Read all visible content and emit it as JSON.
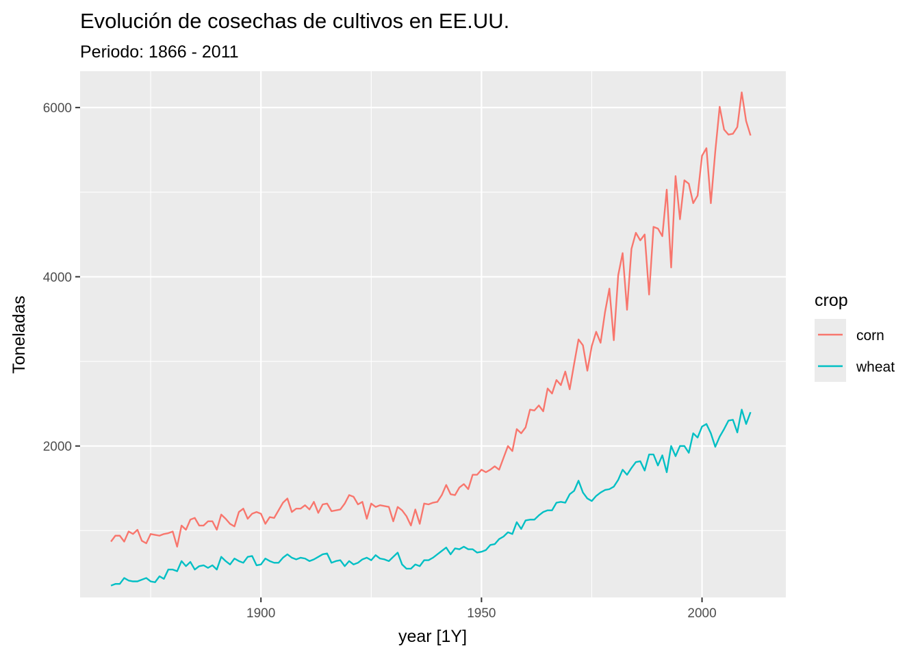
{
  "chart_data": {
    "type": "line",
    "title": "Evolución de cosechas de cultivos en EE.UU.",
    "subtitle": "Periodo: 1866 - 2011",
    "xlabel": "year [1Y]",
    "ylabel": "Toneladas",
    "xlim": [
      1859,
      2019
    ],
    "ylim": [
      210,
      6430
    ],
    "x_ticks": [
      1900,
      1950,
      2000
    ],
    "x_tick_labels": [
      "1900",
      "1950",
      "2000"
    ],
    "x_minor_ticks": [
      1875,
      1925,
      1975
    ],
    "y_ticks": [
      2000,
      4000,
      6000
    ],
    "y_tick_labels": [
      "2000",
      "4000",
      "6000"
    ],
    "y_minor_ticks": [
      1000,
      3000,
      5000
    ],
    "grid": true,
    "panel_background": "#EBEBEB",
    "legend": {
      "title": "crop",
      "position": "right"
    },
    "series": [
      {
        "name": "corn",
        "color": "#F8766D",
        "points": [
          [
            1866,
            870
          ],
          [
            1867,
            940
          ],
          [
            1868,
            940
          ],
          [
            1869,
            870
          ],
          [
            1870,
            990
          ],
          [
            1871,
            960
          ],
          [
            1872,
            1010
          ],
          [
            1873,
            880
          ],
          [
            1874,
            850
          ],
          [
            1875,
            960
          ],
          [
            1876,
            950
          ],
          [
            1877,
            940
          ],
          [
            1878,
            960
          ],
          [
            1879,
            970
          ],
          [
            1880,
            990
          ],
          [
            1881,
            810
          ],
          [
            1882,
            1060
          ],
          [
            1883,
            1010
          ],
          [
            1884,
            1130
          ],
          [
            1885,
            1150
          ],
          [
            1886,
            1060
          ],
          [
            1887,
            1060
          ],
          [
            1888,
            1110
          ],
          [
            1889,
            1110
          ],
          [
            1890,
            1010
          ],
          [
            1891,
            1190
          ],
          [
            1892,
            1140
          ],
          [
            1893,
            1080
          ],
          [
            1894,
            1050
          ],
          [
            1895,
            1220
          ],
          [
            1896,
            1260
          ],
          [
            1897,
            1140
          ],
          [
            1898,
            1200
          ],
          [
            1899,
            1220
          ],
          [
            1900,
            1200
          ],
          [
            1901,
            1080
          ],
          [
            1902,
            1160
          ],
          [
            1903,
            1150
          ],
          [
            1904,
            1240
          ],
          [
            1905,
            1330
          ],
          [
            1906,
            1380
          ],
          [
            1907,
            1220
          ],
          [
            1908,
            1260
          ],
          [
            1909,
            1260
          ],
          [
            1910,
            1300
          ],
          [
            1911,
            1250
          ],
          [
            1912,
            1340
          ],
          [
            1913,
            1210
          ],
          [
            1914,
            1310
          ],
          [
            1915,
            1320
          ],
          [
            1916,
            1230
          ],
          [
            1917,
            1240
          ],
          [
            1918,
            1250
          ],
          [
            1919,
            1320
          ],
          [
            1920,
            1420
          ],
          [
            1921,
            1400
          ],
          [
            1922,
            1310
          ],
          [
            1923,
            1340
          ],
          [
            1924,
            1140
          ],
          [
            1925,
            1320
          ],
          [
            1926,
            1280
          ],
          [
            1927,
            1300
          ],
          [
            1928,
            1290
          ],
          [
            1929,
            1280
          ],
          [
            1930,
            1110
          ],
          [
            1931,
            1280
          ],
          [
            1932,
            1240
          ],
          [
            1933,
            1170
          ],
          [
            1934,
            1060
          ],
          [
            1935,
            1250
          ],
          [
            1936,
            1080
          ],
          [
            1937,
            1320
          ],
          [
            1938,
            1310
          ],
          [
            1939,
            1330
          ],
          [
            1940,
            1340
          ],
          [
            1941,
            1420
          ],
          [
            1942,
            1540
          ],
          [
            1943,
            1430
          ],
          [
            1944,
            1420
          ],
          [
            1945,
            1510
          ],
          [
            1946,
            1550
          ],
          [
            1947,
            1490
          ],
          [
            1948,
            1660
          ],
          [
            1949,
            1660
          ],
          [
            1950,
            1720
          ],
          [
            1951,
            1690
          ],
          [
            1952,
            1720
          ],
          [
            1953,
            1760
          ],
          [
            1954,
            1720
          ],
          [
            1955,
            1860
          ],
          [
            1956,
            2000
          ],
          [
            1957,
            1940
          ],
          [
            1958,
            2200
          ],
          [
            1959,
            2150
          ],
          [
            1960,
            2220
          ],
          [
            1961,
            2430
          ],
          [
            1962,
            2420
          ],
          [
            1963,
            2480
          ],
          [
            1964,
            2410
          ],
          [
            1965,
            2680
          ],
          [
            1966,
            2620
          ],
          [
            1967,
            2780
          ],
          [
            1968,
            2720
          ],
          [
            1969,
            2880
          ],
          [
            1970,
            2670
          ],
          [
            1971,
            2970
          ],
          [
            1972,
            3260
          ],
          [
            1973,
            3190
          ],
          [
            1974,
            2890
          ],
          [
            1975,
            3180
          ],
          [
            1976,
            3350
          ],
          [
            1977,
            3220
          ],
          [
            1978,
            3580
          ],
          [
            1979,
            3860
          ],
          [
            1980,
            3250
          ],
          [
            1981,
            4020
          ],
          [
            1982,
            4280
          ],
          [
            1983,
            3610
          ],
          [
            1984,
            4330
          ],
          [
            1985,
            4520
          ],
          [
            1986,
            4430
          ],
          [
            1987,
            4500
          ],
          [
            1988,
            3790
          ],
          [
            1989,
            4590
          ],
          [
            1990,
            4570
          ],
          [
            1991,
            4480
          ],
          [
            1992,
            5030
          ],
          [
            1993,
            4110
          ],
          [
            1994,
            5190
          ],
          [
            1995,
            4680
          ],
          [
            1996,
            5140
          ],
          [
            1997,
            5100
          ],
          [
            1998,
            4870
          ],
          [
            1999,
            4960
          ],
          [
            2000,
            5430
          ],
          [
            2001,
            5520
          ],
          [
            2002,
            4870
          ],
          [
            2003,
            5480
          ],
          [
            2004,
            6010
          ],
          [
            2005,
            5740
          ],
          [
            2006,
            5680
          ],
          [
            2007,
            5690
          ],
          [
            2008,
            5770
          ],
          [
            2009,
            6180
          ],
          [
            2010,
            5840
          ],
          [
            2011,
            5670
          ]
        ]
      },
      {
        "name": "wheat",
        "color": "#00BFC4",
        "points": [
          [
            1866,
            350
          ],
          [
            1867,
            370
          ],
          [
            1868,
            370
          ],
          [
            1869,
            440
          ],
          [
            1870,
            410
          ],
          [
            1871,
            400
          ],
          [
            1872,
            400
          ],
          [
            1873,
            420
          ],
          [
            1874,
            440
          ],
          [
            1875,
            400
          ],
          [
            1876,
            390
          ],
          [
            1877,
            460
          ],
          [
            1878,
            430
          ],
          [
            1879,
            540
          ],
          [
            1880,
            540
          ],
          [
            1881,
            520
          ],
          [
            1882,
            640
          ],
          [
            1883,
            580
          ],
          [
            1884,
            630
          ],
          [
            1885,
            540
          ],
          [
            1886,
            580
          ],
          [
            1887,
            590
          ],
          [
            1888,
            560
          ],
          [
            1889,
            590
          ],
          [
            1890,
            540
          ],
          [
            1891,
            690
          ],
          [
            1892,
            640
          ],
          [
            1893,
            600
          ],
          [
            1894,
            670
          ],
          [
            1895,
            640
          ],
          [
            1896,
            620
          ],
          [
            1897,
            690
          ],
          [
            1898,
            700
          ],
          [
            1899,
            590
          ],
          [
            1900,
            600
          ],
          [
            1901,
            670
          ],
          [
            1902,
            640
          ],
          [
            1903,
            620
          ],
          [
            1904,
            620
          ],
          [
            1905,
            680
          ],
          [
            1906,
            720
          ],
          [
            1907,
            680
          ],
          [
            1908,
            660
          ],
          [
            1909,
            680
          ],
          [
            1910,
            670
          ],
          [
            1911,
            640
          ],
          [
            1912,
            660
          ],
          [
            1913,
            690
          ],
          [
            1914,
            720
          ],
          [
            1915,
            730
          ],
          [
            1916,
            620
          ],
          [
            1917,
            640
          ],
          [
            1918,
            650
          ],
          [
            1919,
            580
          ],
          [
            1920,
            640
          ],
          [
            1921,
            600
          ],
          [
            1922,
            620
          ],
          [
            1923,
            660
          ],
          [
            1924,
            680
          ],
          [
            1925,
            650
          ],
          [
            1926,
            710
          ],
          [
            1927,
            670
          ],
          [
            1928,
            660
          ],
          [
            1929,
            640
          ],
          [
            1930,
            690
          ],
          [
            1931,
            740
          ],
          [
            1932,
            600
          ],
          [
            1933,
            550
          ],
          [
            1934,
            550
          ],
          [
            1935,
            600
          ],
          [
            1936,
            580
          ],
          [
            1937,
            650
          ],
          [
            1938,
            650
          ],
          [
            1939,
            680
          ],
          [
            1940,
            720
          ],
          [
            1941,
            760
          ],
          [
            1942,
            800
          ],
          [
            1943,
            720
          ],
          [
            1944,
            790
          ],
          [
            1945,
            780
          ],
          [
            1946,
            810
          ],
          [
            1947,
            780
          ],
          [
            1948,
            780
          ],
          [
            1949,
            740
          ],
          [
            1950,
            750
          ],
          [
            1951,
            770
          ],
          [
            1952,
            830
          ],
          [
            1953,
            840
          ],
          [
            1954,
            900
          ],
          [
            1955,
            930
          ],
          [
            1956,
            980
          ],
          [
            1957,
            960
          ],
          [
            1958,
            1100
          ],
          [
            1959,
            1020
          ],
          [
            1960,
            1120
          ],
          [
            1961,
            1130
          ],
          [
            1962,
            1130
          ],
          [
            1963,
            1180
          ],
          [
            1964,
            1220
          ],
          [
            1965,
            1240
          ],
          [
            1966,
            1240
          ],
          [
            1967,
            1330
          ],
          [
            1968,
            1340
          ],
          [
            1969,
            1330
          ],
          [
            1970,
            1430
          ],
          [
            1971,
            1470
          ],
          [
            1972,
            1590
          ],
          [
            1973,
            1450
          ],
          [
            1974,
            1380
          ],
          [
            1975,
            1350
          ],
          [
            1976,
            1410
          ],
          [
            1977,
            1450
          ],
          [
            1978,
            1480
          ],
          [
            1979,
            1490
          ],
          [
            1980,
            1520
          ],
          [
            1981,
            1600
          ],
          [
            1982,
            1720
          ],
          [
            1983,
            1660
          ],
          [
            1984,
            1740
          ],
          [
            1985,
            1810
          ],
          [
            1986,
            1820
          ],
          [
            1987,
            1710
          ],
          [
            1988,
            1900
          ],
          [
            1989,
            1900
          ],
          [
            1990,
            1770
          ],
          [
            1991,
            1890
          ],
          [
            1992,
            1690
          ],
          [
            1993,
            2000
          ],
          [
            1994,
            1880
          ],
          [
            1995,
            2000
          ],
          [
            1996,
            2000
          ],
          [
            1997,
            1920
          ],
          [
            1998,
            2150
          ],
          [
            1999,
            2100
          ],
          [
            2000,
            2230
          ],
          [
            2001,
            2260
          ],
          [
            2002,
            2150
          ],
          [
            2003,
            1990
          ],
          [
            2004,
            2110
          ],
          [
            2005,
            2200
          ],
          [
            2006,
            2300
          ],
          [
            2007,
            2310
          ],
          [
            2008,
            2160
          ],
          [
            2009,
            2430
          ],
          [
            2010,
            2260
          ],
          [
            2011,
            2400
          ]
        ]
      }
    ]
  }
}
